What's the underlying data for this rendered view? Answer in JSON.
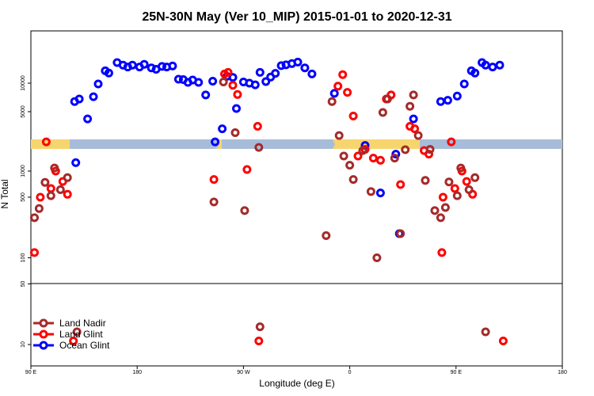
{
  "chart_data": {
    "type": "scatter",
    "title": "25N-30N May (Ver 10_MIP)   2015-01-01 to 2020-12-31",
    "xlabel": "Longitude (deg E)",
    "ylabel": "N Total",
    "xlim": [
      90,
      540
    ],
    "x_ticks": [
      {
        "value": 90,
        "label": "90 E"
      },
      {
        "value": 180,
        "label": "180"
      },
      {
        "value": 270,
        "label": "90 W"
      },
      {
        "value": 360,
        "label": "0"
      },
      {
        "value": 450,
        "label": "90 E"
      },
      {
        "value": 540,
        "label": "180"
      }
    ],
    "y_ticks_lower": [
      {
        "value": 10,
        "label": "10"
      },
      {
        "value": 50,
        "label": "50"
      },
      {
        "value": 100,
        "label": "100"
      },
      {
        "value": 500,
        "label": "500"
      },
      {
        "value": 1000,
        "label": "1000"
      }
    ],
    "y_ticks_upper": [
      {
        "value": 5000,
        "label": "5000"
      },
      {
        "value": 10000,
        "label": "10000"
      }
    ],
    "legend_position": "bottom-left",
    "legend": [
      {
        "name": "Land Nadir",
        "color": "#a52a2a"
      },
      {
        "name": "Land Glint",
        "color": "#ff0000"
      },
      {
        "name": "Ocean Glint",
        "color": "#0000ff"
      }
    ],
    "series": [
      {
        "name": "Ocean Glint",
        "color": "#0000ff",
        "points": [
          [
            128,
            1300
          ],
          [
            127,
            6400
          ],
          [
            131,
            6800
          ],
          [
            138,
            4200
          ],
          [
            143,
            7200
          ],
          [
            147,
            9800
          ],
          [
            153,
            13500
          ],
          [
            156,
            12800
          ],
          [
            163,
            16500
          ],
          [
            168,
            15500
          ],
          [
            172,
            14800
          ],
          [
            176,
            15500
          ],
          [
            182,
            14800
          ],
          [
            186,
            15800
          ],
          [
            192,
            14500
          ],
          [
            196,
            14000
          ],
          [
            201,
            15000
          ],
          [
            205,
            14800
          ],
          [
            210,
            15200
          ],
          [
            215,
            11000
          ],
          [
            219,
            10900
          ],
          [
            223,
            10200
          ],
          [
            227,
            10800
          ],
          [
            232,
            10200
          ],
          [
            238,
            7500
          ],
          [
            244,
            10500
          ],
          [
            246,
            2400
          ],
          [
            252,
            3300
          ],
          [
            256,
            11800
          ],
          [
            261,
            11500
          ],
          [
            264,
            5400
          ],
          [
            270,
            10300
          ],
          [
            275,
            10000
          ],
          [
            280,
            9600
          ],
          [
            284,
            13000
          ],
          [
            289,
            10400
          ],
          [
            293,
            11600
          ],
          [
            297,
            12700
          ],
          [
            302,
            15300
          ],
          [
            306,
            15600
          ],
          [
            311,
            16100
          ],
          [
            316,
            16700
          ],
          [
            322,
            14500
          ],
          [
            328,
            12500
          ],
          [
            347,
            7800
          ],
          [
            373,
            2200
          ],
          [
            386,
            560
          ],
          [
            399,
            1700
          ],
          [
            402,
            190
          ],
          [
            414,
            4200
          ],
          [
            437,
            6400
          ],
          [
            443,
            6600
          ],
          [
            451,
            7300
          ],
          [
            457,
            9800
          ],
          [
            463,
            13500
          ],
          [
            466,
            12800
          ],
          [
            472,
            16500
          ],
          [
            475,
            15500
          ],
          [
            481,
            14800
          ],
          [
            487,
            15500
          ]
        ]
      },
      {
        "name": "Land Glint",
        "color": "#ff0000",
        "points": [
          [
            93,
            115
          ],
          [
            98,
            500
          ],
          [
            103,
            2400
          ],
          [
            107,
            630
          ],
          [
            111,
            1000
          ],
          [
            117,
            760
          ],
          [
            121,
            540
          ],
          [
            126,
            11
          ],
          [
            245,
            800
          ],
          [
            254,
            12500
          ],
          [
            257,
            13000
          ],
          [
            261,
            9500
          ],
          [
            265,
            7600
          ],
          [
            273,
            1050
          ],
          [
            282,
            3500
          ],
          [
            283,
            11
          ],
          [
            350,
            9300
          ],
          [
            354,
            12300
          ],
          [
            358,
            8000
          ],
          [
            363,
            4500
          ],
          [
            367,
            1600
          ],
          [
            373,
            2000
          ],
          [
            380,
            1500
          ],
          [
            386,
            1400
          ],
          [
            391,
            6800
          ],
          [
            395,
            7500
          ],
          [
            403,
            700
          ],
          [
            411,
            3500
          ],
          [
            415,
            3300
          ],
          [
            423,
            1900
          ],
          [
            427,
            1700
          ],
          [
            438,
            115
          ],
          [
            439,
            500
          ],
          [
            446,
            2400
          ],
          [
            449,
            630
          ],
          [
            455,
            1000
          ],
          [
            459,
            760
          ],
          [
            464,
            540
          ],
          [
            490,
            11
          ]
        ]
      },
      {
        "name": "Land Nadir",
        "color": "#a52a2a",
        "points": [
          [
            93,
            290
          ],
          [
            97,
            370
          ],
          [
            102,
            740
          ],
          [
            107,
            520
          ],
          [
            110,
            1100
          ],
          [
            115,
            610
          ],
          [
            121,
            840
          ],
          [
            129,
            14
          ],
          [
            245,
            440
          ],
          [
            253,
            10300
          ],
          [
            263,
            3000
          ],
          [
            271,
            350
          ],
          [
            283,
            2100
          ],
          [
            284,
            16
          ],
          [
            340,
            180
          ],
          [
            345,
            6400
          ],
          [
            351,
            2800
          ],
          [
            355,
            1600
          ],
          [
            360,
            1200
          ],
          [
            363,
            800
          ],
          [
            371,
            1900
          ],
          [
            378,
            580
          ],
          [
            383,
            100
          ],
          [
            388,
            4900
          ],
          [
            392,
            6800
          ],
          [
            398,
            1500
          ],
          [
            403,
            190
          ],
          [
            407,
            1950
          ],
          [
            411,
            5700
          ],
          [
            414,
            7500
          ],
          [
            418,
            2800
          ],
          [
            424,
            780
          ],
          [
            428,
            2000
          ],
          [
            432,
            350
          ],
          [
            437,
            290
          ],
          [
            441,
            380
          ],
          [
            444,
            750
          ],
          [
            451,
            520
          ],
          [
            454,
            1100
          ],
          [
            461,
            610
          ],
          [
            466,
            840
          ],
          [
            475,
            14
          ]
        ]
      }
    ]
  }
}
